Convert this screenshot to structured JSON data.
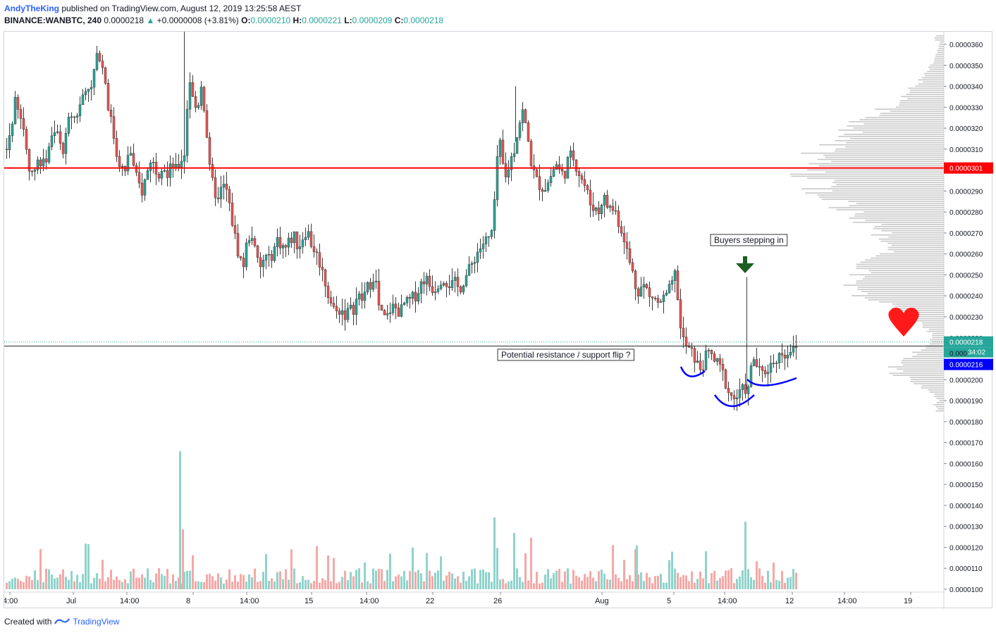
{
  "header": {
    "author": "AndyTheKing",
    "published_text": "published on TradingView.com, August 12, 2019 13:25:58 AEST",
    "symbol_line": "BINANCE:WANBTC, 240",
    "last": "0.0000218",
    "change_arrow": "▲",
    "change": "+0.0000008 (+3.81%)",
    "o_label": "O:",
    "o_value": "0.0000210",
    "h_label": "H:",
    "h_value": "0.0000221",
    "l_label": "L:",
    "l_value": "0.0000209",
    "c_label": "C:",
    "c_value": "0.0000218"
  },
  "footer": {
    "created_with": "Created with",
    "brand": "TradingView"
  },
  "colors": {
    "up": "#26a69a",
    "down": "#ef5350",
    "resistance": "#ff0000",
    "annotation": "#0000ff",
    "arrow": "#1b5e20",
    "heart": "#ff1a1a"
  },
  "chart_data": {
    "type": "candlestick",
    "symbol": "BINANCE:WANBTC",
    "timeframe": "240",
    "ylim": [
      9.5e-06,
      3.66e-05
    ],
    "y_ticks": [
      "0.0000360",
      "0.0000350",
      "0.0000340",
      "0.0000330",
      "0.0000320",
      "0.0000310",
      "0.0000290",
      "0.0000280",
      "0.0000270",
      "0.0000260",
      "0.0000250",
      "0.0000240",
      "0.0000230",
      "0.0000220",
      "0.0000200",
      "0.0000190",
      "0.0000180",
      "0.0000170",
      "0.0000160",
      "0.0000150",
      "0.0000140",
      "0.0000130",
      "0.0000120",
      "0.0000110",
      "0.0000100"
    ],
    "x_ticks": [
      "4:00",
      "Jul",
      "14:00",
      "8",
      "14:00",
      "15",
      "14:00",
      "22",
      "26",
      "Aug",
      "5",
      "14:00",
      "12",
      "14:00",
      "19"
    ],
    "close_path": [
      [
        0,
        31.0
      ],
      [
        6,
        32.0
      ],
      [
        12,
        33.2
      ],
      [
        18,
        32.6
      ],
      [
        24,
        32.0
      ],
      [
        30,
        30.5
      ],
      [
        36,
        29.7
      ],
      [
        42,
        30.6
      ],
      [
        48,
        30.2
      ],
      [
        54,
        30.3
      ],
      [
        60,
        31.2
      ],
      [
        66,
        31.6
      ],
      [
        72,
        31.8
      ],
      [
        78,
        30.8
      ],
      [
        84,
        31.5
      ],
      [
        90,
        32.7
      ],
      [
        96,
        32.5
      ],
      [
        102,
        32.8
      ],
      [
        108,
        33.6
      ],
      [
        114,
        34.2
      ],
      [
        120,
        33.8
      ],
      [
        126,
        35.2
      ],
      [
        132,
        35.5
      ],
      [
        138,
        34.8
      ],
      [
        144,
        33.1
      ],
      [
        150,
        32.0
      ],
      [
        156,
        30.8
      ],
      [
        162,
        30.2
      ],
      [
        168,
        29.8
      ],
      [
        174,
        31.2
      ],
      [
        180,
        30.1
      ],
      [
        186,
        29.4
      ],
      [
        192,
        29.0
      ],
      [
        198,
        29.7
      ],
      [
        204,
        30.5
      ],
      [
        210,
        30.2
      ],
      [
        216,
        29.9
      ],
      [
        222,
        30.4
      ],
      [
        228,
        29.6
      ],
      [
        234,
        30.3
      ],
      [
        240,
        30.0
      ],
      [
        246,
        30.4
      ],
      [
        252,
        30.8
      ],
      [
        256,
        33.0
      ],
      [
        260,
        34.3
      ],
      [
        264,
        33.4
      ],
      [
        270,
        32.8
      ],
      [
        276,
        34.1
      ],
      [
        282,
        32.5
      ],
      [
        288,
        30.0
      ],
      [
        294,
        29.1
      ],
      [
        300,
        28.5
      ],
      [
        306,
        29.3
      ],
      [
        312,
        29.0
      ],
      [
        318,
        27.9
      ],
      [
        324,
        26.8
      ],
      [
        330,
        25.8
      ],
      [
        336,
        25.5
      ],
      [
        342,
        26.8
      ],
      [
        348,
        26.9
      ],
      [
        354,
        25.8
      ],
      [
        360,
        25.3
      ],
      [
        366,
        25.9
      ],
      [
        372,
        25.7
      ],
      [
        378,
        26.1
      ],
      [
        384,
        26.7
      ],
      [
        390,
        26.4
      ],
      [
        396,
        26.3
      ],
      [
        402,
        26.7
      ],
      [
        408,
        26.8
      ],
      [
        414,
        26.3
      ],
      [
        420,
        26.8
      ],
      [
        426,
        27.2
      ],
      [
        432,
        26.5
      ],
      [
        438,
        26.1
      ],
      [
        444,
        25.6
      ],
      [
        450,
        24.9
      ],
      [
        456,
        24.1
      ],
      [
        462,
        23.5
      ],
      [
        468,
        23.2
      ],
      [
        474,
        23.4
      ],
      [
        480,
        23.1
      ],
      [
        486,
        23.3
      ],
      [
        492,
        23.4
      ],
      [
        498,
        24.0
      ],
      [
        504,
        23.8
      ],
      [
        510,
        24.3
      ],
      [
        516,
        24.6
      ],
      [
        522,
        25.1
      ],
      [
        528,
        23.5
      ],
      [
        534,
        22.9
      ],
      [
        540,
        23.0
      ],
      [
        546,
        23.5
      ],
      [
        552,
        23.4
      ],
      [
        558,
        23.2
      ],
      [
        564,
        23.6
      ],
      [
        570,
        23.7
      ],
      [
        576,
        23.9
      ],
      [
        582,
        24.1
      ],
      [
        588,
        24.6
      ],
      [
        594,
        24.9
      ],
      [
        600,
        24.5
      ],
      [
        606,
        24.3
      ],
      [
        612,
        24.6
      ],
      [
        618,
        24.9
      ],
      [
        624,
        24.7
      ],
      [
        630,
        24.5
      ],
      [
        636,
        24.6
      ],
      [
        642,
        24.3
      ],
      [
        648,
        24.7
      ],
      [
        654,
        25.1
      ],
      [
        660,
        25.5
      ],
      [
        666,
        26.0
      ],
      [
        672,
        26.3
      ],
      [
        678,
        26.6
      ],
      [
        684,
        26.7
      ],
      [
        690,
        27.2
      ],
      [
        694,
        29.4
      ],
      [
        698,
        31.8
      ],
      [
        702,
        30.5
      ],
      [
        708,
        29.6
      ],
      [
        714,
        30.4
      ],
      [
        720,
        31.0
      ],
      [
        726,
        32.1
      ],
      [
        732,
        32.8
      ],
      [
        738,
        31.8
      ],
      [
        744,
        30.4
      ],
      [
        750,
        29.6
      ],
      [
        756,
        29.3
      ],
      [
        762,
        29.1
      ],
      [
        768,
        29.4
      ],
      [
        774,
        29.9
      ],
      [
        780,
        30.3
      ],
      [
        786,
        29.8
      ],
      [
        792,
        29.9
      ],
      [
        798,
        30.7
      ],
      [
        804,
        30.6
      ],
      [
        810,
        30.0
      ],
      [
        816,
        29.6
      ],
      [
        822,
        29.1
      ],
      [
        828,
        28.4
      ],
      [
        834,
        28.2
      ],
      [
        840,
        28.0
      ],
      [
        846,
        28.8
      ],
      [
        852,
        28.3
      ],
      [
        858,
        28.2
      ],
      [
        864,
        28.0
      ],
      [
        870,
        27.3
      ],
      [
        876,
        26.8
      ],
      [
        882,
        25.8
      ],
      [
        888,
        25.1
      ],
      [
        894,
        24.2
      ],
      [
        900,
        24.4
      ],
      [
        906,
        24.5
      ],
      [
        912,
        23.9
      ],
      [
        918,
        24.0
      ],
      [
        924,
        23.6
      ],
      [
        930,
        23.8
      ],
      [
        936,
        24.0
      ],
      [
        942,
        24.4
      ],
      [
        946,
        24.7
      ],
      [
        950,
        25.3
      ],
      [
        954,
        22.7
      ],
      [
        958,
        22.1
      ],
      [
        962,
        21.7
      ],
      [
        968,
        21.4
      ],
      [
        974,
        21.2
      ],
      [
        980,
        20.7
      ],
      [
        986,
        20.5
      ],
      [
        992,
        21.1
      ],
      [
        998,
        21.3
      ],
      [
        1004,
        20.9
      ],
      [
        1010,
        20.7
      ],
      [
        1016,
        20.3
      ],
      [
        1022,
        19.6
      ],
      [
        1028,
        19.2
      ],
      [
        1034,
        19.1
      ],
      [
        1040,
        19.3
      ],
      [
        1046,
        19.6
      ],
      [
        1052,
        19.5
      ],
      [
        1056,
        20.5
      ],
      [
        1060,
        21.0
      ],
      [
        1064,
        20.7
      ],
      [
        1070,
        20.2
      ],
      [
        1076,
        20.4
      ],
      [
        1082,
        20.6
      ],
      [
        1088,
        20.9
      ],
      [
        1094,
        21.1
      ],
      [
        1100,
        21.3
      ],
      [
        1106,
        21.2
      ],
      [
        1112,
        21.5
      ],
      [
        1118,
        21.3
      ],
      [
        1124,
        21.8
      ]
    ],
    "volume_profile": "horizontal volume-by-price histogram (grey) on the right side",
    "horizontal_levels": [
      {
        "price": 30.1,
        "label": "0.0000301",
        "color": "#ff0000"
      },
      {
        "price": 21.8,
        "label": "0.0000218",
        "style": "dotted"
      },
      {
        "price": 21.6,
        "label": "0.0000216"
      }
    ],
    "price_tags": {
      "resistance": "0.0000301",
      "last": "0.0000218",
      "countdown": "34:02",
      "current": "0.0000216",
      "partial": "0.000"
    },
    "annotations": {
      "buyers": "Buyers stepping in",
      "flip": "Potential resistance / support flip ?"
    }
  }
}
